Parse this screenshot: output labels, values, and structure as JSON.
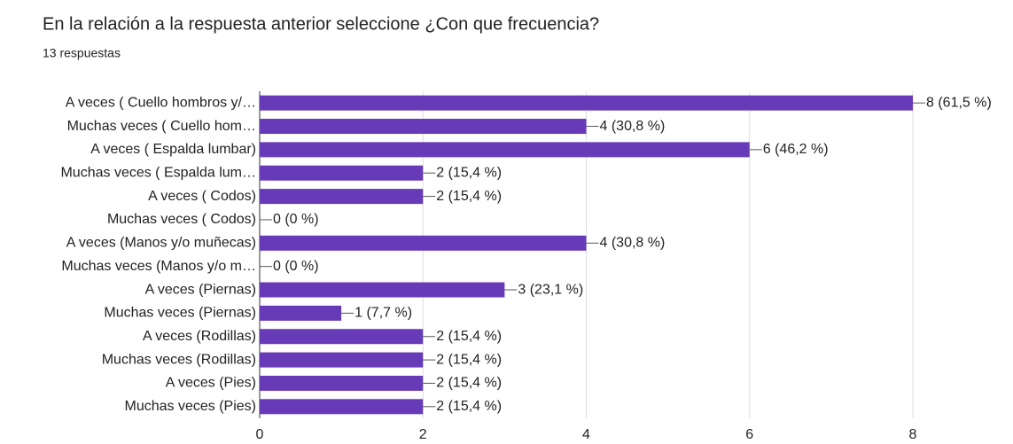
{
  "chart_data": {
    "type": "bar",
    "orientation": "horizontal",
    "title": "En la relación a la respuesta anterior seleccione ¿Con que frecuencia?",
    "subtitle": "13 respuestas",
    "categories": [
      "A veces ( Cuello hombros y/…",
      "Muchas veces ( Cuello hom…",
      "A veces ( Espalda lumbar)",
      "Muchas veces ( Espalda lum…",
      "A veces ( Codos)",
      "Muchas veces ( Codos)",
      "A veces (Manos y/o muñecas)",
      "Muchas veces (Manos y/o m…",
      "A veces (Piernas)",
      "Muchas veces (Piernas)",
      "A veces (Rodillas)",
      "Muchas veces (Rodillas)",
      "A veces (Pies)",
      "Muchas veces (Pies)"
    ],
    "values": [
      8,
      4,
      6,
      2,
      2,
      0,
      4,
      0,
      3,
      1,
      2,
      2,
      2,
      2
    ],
    "value_labels": [
      "8 (61,5 %)",
      "4 (30,8 %)",
      "6 (46,2 %)",
      "2 (15,4 %)",
      "2 (15,4 %)",
      "0 (0 %)",
      "4 (30,8 %)",
      "0 (0 %)",
      "3 (23,1 %)",
      "1 (7,7 %)",
      "2 (15,4 %)",
      "2 (15,4 %)",
      "2 (15,4 %)",
      "2 (15,4 %)"
    ],
    "color": "#673ab7",
    "xlim": [
      0,
      8
    ],
    "xticks": [
      0,
      2,
      4,
      6,
      8
    ],
    "grid": true
  }
}
